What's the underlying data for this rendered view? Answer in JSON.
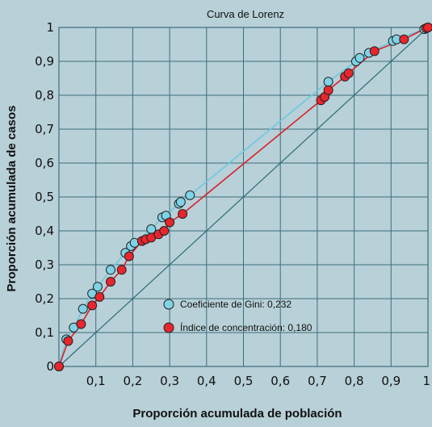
{
  "chart_data": {
    "type": "line",
    "title": "Curva de Lorenz",
    "xlabel": "Proporción acumulada de población",
    "ylabel": "Proporción acumulada de casos",
    "xlim": [
      0,
      1
    ],
    "ylim": [
      0,
      1
    ],
    "grid": true,
    "x_tick_labels": [
      "0,1",
      "0,2",
      "0,3",
      "0,4",
      "0,5",
      "0,6",
      "0,7",
      "0,8",
      "0,9",
      "1"
    ],
    "y_tick_labels": [
      "0",
      "0,1",
      "0,2",
      "0,3",
      "0,4",
      "0,5",
      "0,6",
      "0,7",
      "0,8",
      "0,9",
      "1"
    ],
    "legend_placement": "center",
    "series": [
      {
        "name": "Coeficiente de Gini: 0,232",
        "color": "#7fd3e6",
        "line_color": "#6cc8de",
        "points": [
          [
            0.0,
            0.0
          ],
          [
            0.02,
            0.08
          ],
          [
            0.04,
            0.115
          ],
          [
            0.065,
            0.17
          ],
          [
            0.09,
            0.215
          ],
          [
            0.105,
            0.235
          ],
          [
            0.14,
            0.285
          ],
          [
            0.18,
            0.335
          ],
          [
            0.195,
            0.355
          ],
          [
            0.205,
            0.365
          ],
          [
            0.25,
            0.405
          ],
          [
            0.28,
            0.44
          ],
          [
            0.29,
            0.445
          ],
          [
            0.325,
            0.48
          ],
          [
            0.33,
            0.485
          ],
          [
            0.355,
            0.505
          ],
          [
            0.73,
            0.84
          ],
          [
            0.805,
            0.9
          ],
          [
            0.815,
            0.91
          ],
          [
            0.84,
            0.925
          ],
          [
            0.905,
            0.96
          ],
          [
            0.915,
            0.965
          ],
          [
            0.99,
            0.995
          ],
          [
            1.0,
            1.0
          ]
        ]
      },
      {
        "name": "Índice de concentración: 0,180",
        "color": "#e8262e",
        "line_color": "#d82028",
        "points": [
          [
            0.0,
            0.0
          ],
          [
            0.025,
            0.075
          ],
          [
            0.06,
            0.125
          ],
          [
            0.09,
            0.18
          ],
          [
            0.11,
            0.205
          ],
          [
            0.14,
            0.25
          ],
          [
            0.17,
            0.285
          ],
          [
            0.19,
            0.325
          ],
          [
            0.225,
            0.37
          ],
          [
            0.235,
            0.375
          ],
          [
            0.25,
            0.38
          ],
          [
            0.27,
            0.39
          ],
          [
            0.285,
            0.4
          ],
          [
            0.3,
            0.425
          ],
          [
            0.335,
            0.45
          ],
          [
            0.71,
            0.785
          ],
          [
            0.72,
            0.795
          ],
          [
            0.73,
            0.815
          ],
          [
            0.775,
            0.855
          ],
          [
            0.785,
            0.865
          ],
          [
            0.855,
            0.93
          ],
          [
            0.935,
            0.965
          ],
          [
            0.995,
            0.998
          ],
          [
            1.0,
            1.0
          ]
        ]
      },
      {
        "name": "",
        "color": "#2b6b78",
        "points": [
          [
            0,
            0
          ],
          [
            1,
            1
          ]
        ]
      }
    ],
    "colors": {
      "background": "#b8d0d8",
      "grid": "#3d6e7a",
      "frame": "#3d6e7a"
    }
  }
}
